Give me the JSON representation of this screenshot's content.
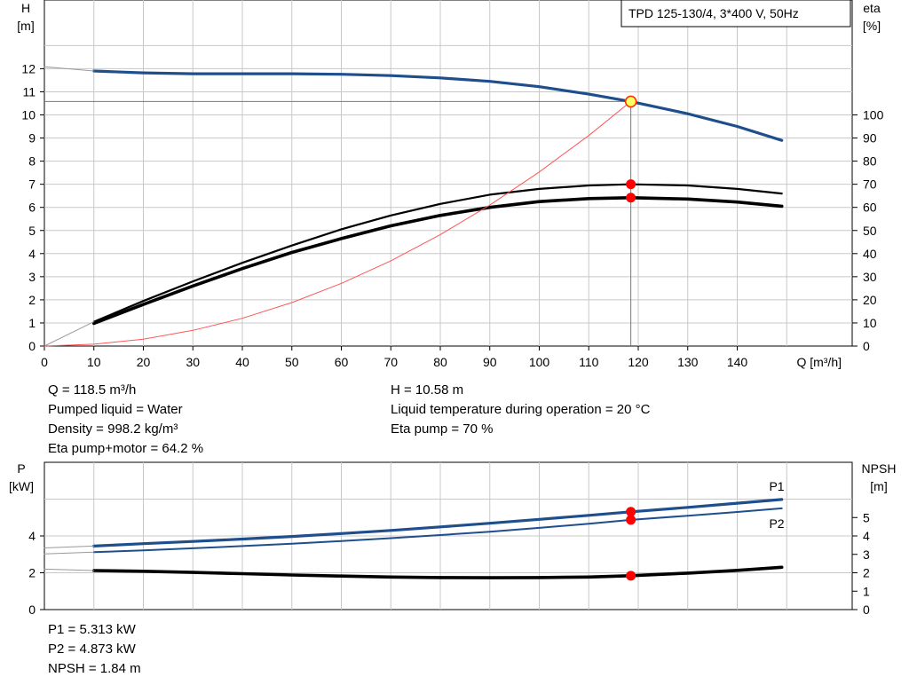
{
  "chart_data": [
    {
      "type": "line",
      "title": "TPD 125-130/4, 3*400 V, 50Hz",
      "xlabel": "Q [m³/h]",
      "ylabel_left": "H",
      "ylabel_left_unit": "[m]",
      "ylabel_right": "eta",
      "ylabel_right_unit": "[%]",
      "xlim": [
        0,
        160
      ],
      "ylim_left": [
        0,
        14
      ],
      "ylim_right": [
        0,
        140
      ],
      "x_ticks": [
        0,
        10,
        20,
        30,
        40,
        50,
        60,
        70,
        80,
        90,
        100,
        110,
        120,
        130,
        140
      ],
      "y_ticks_left": [
        0,
        1,
        2,
        3,
        4,
        5,
        6,
        7,
        8,
        9,
        10,
        11,
        12
      ],
      "y_ticks_right": [
        0,
        10,
        20,
        30,
        40,
        50,
        60,
        70,
        80,
        90,
        100
      ],
      "grid": true,
      "series": [
        {
          "key": "H",
          "axis": "left",
          "color": "#1f4e8c",
          "width": 3.2,
          "x": [
            10,
            20,
            30,
            40,
            50,
            60,
            70,
            80,
            90,
            100,
            110,
            118.5,
            130,
            140,
            149
          ],
          "y": [
            11.9,
            11.82,
            11.78,
            11.78,
            11.78,
            11.76,
            11.7,
            11.6,
            11.45,
            11.22,
            10.9,
            10.58,
            10.05,
            9.5,
            8.9
          ]
        },
        {
          "key": "H_ext",
          "axis": "left",
          "color": "#999999",
          "width": 1,
          "x": [
            0,
            10
          ],
          "y": [
            12.08,
            11.9
          ]
        },
        {
          "key": "eta_pump",
          "axis": "right",
          "color": "#000000",
          "width": 2.2,
          "x": [
            10,
            20,
            30,
            40,
            50,
            60,
            70,
            80,
            90,
            100,
            110,
            118.5,
            130,
            140,
            149
          ],
          "y": [
            10.5,
            19.5,
            28,
            36,
            43.5,
            50.5,
            56.5,
            61.5,
            65.5,
            68,
            69.5,
            70,
            69.5,
            68,
            66
          ]
        },
        {
          "key": "eta_total",
          "axis": "right",
          "color": "#000000",
          "width": 3.6,
          "x": [
            10,
            20,
            30,
            40,
            50,
            60,
            70,
            80,
            90,
            100,
            110,
            118.5,
            130,
            140,
            149
          ],
          "y": [
            9.8,
            18,
            26,
            33.5,
            40.5,
            46.5,
            52,
            56.5,
            60,
            62.5,
            63.8,
            64.2,
            63.6,
            62.3,
            60.5
          ]
        },
        {
          "key": "eta_ext",
          "axis": "right",
          "color": "#999999",
          "width": 1,
          "x": [
            0,
            10
          ],
          "y": [
            0,
            10.5
          ]
        },
        {
          "key": "system_curve",
          "axis": "left",
          "color": "#ff5555",
          "width": 1,
          "x": [
            0,
            10,
            20,
            30,
            40,
            50,
            60,
            70,
            80,
            90,
            100,
            110,
            118.5
          ],
          "y": [
            0,
            0.08,
            0.3,
            0.68,
            1.2,
            1.88,
            2.71,
            3.69,
            4.82,
            6.1,
            7.53,
            9.11,
            10.58
          ]
        }
      ],
      "operating_point": {
        "Q": 118.5,
        "H": 10.58,
        "eta_pump": 70,
        "eta_total": 64.2
      }
    },
    {
      "type": "line",
      "ylabel_left": "P",
      "ylabel_left_unit": "[kW]",
      "ylabel_right": "NPSH",
      "ylabel_right_unit": "[m]",
      "xlim": [
        0,
        160
      ],
      "ylim_left": [
        0,
        7
      ],
      "ylim_right": [
        0,
        7
      ],
      "x_ticks": [
        0,
        10,
        20,
        30,
        40,
        50,
        60,
        70,
        80,
        90,
        100,
        110,
        120,
        130,
        140
      ],
      "y_ticks_left": [
        0,
        2,
        4
      ],
      "y_ticks_right": [
        0,
        1,
        2,
        3,
        4,
        5
      ],
      "grid": true,
      "series": [
        {
          "key": "P1",
          "name": "P1",
          "axis": "left",
          "color": "#1f4e8c",
          "width": 3.2,
          "x": [
            10,
            20,
            30,
            40,
            50,
            60,
            70,
            80,
            90,
            100,
            110,
            118.5,
            130,
            140,
            149
          ],
          "y": [
            3.45,
            3.58,
            3.7,
            3.83,
            3.97,
            4.13,
            4.3,
            4.49,
            4.69,
            4.9,
            5.12,
            5.313,
            5.55,
            5.78,
            5.98
          ]
        },
        {
          "key": "P2",
          "name": "P2",
          "axis": "left",
          "color": "#1f4e8c",
          "width": 2,
          "x": [
            10,
            20,
            30,
            40,
            50,
            60,
            70,
            80,
            90,
            100,
            110,
            118.5,
            130,
            140,
            149
          ],
          "y": [
            3.12,
            3.22,
            3.33,
            3.45,
            3.58,
            3.72,
            3.88,
            4.05,
            4.23,
            4.44,
            4.66,
            4.873,
            5.1,
            5.3,
            5.5
          ]
        },
        {
          "key": "NPSH",
          "axis": "right",
          "color": "#000000",
          "width": 3.6,
          "x": [
            10,
            20,
            30,
            40,
            50,
            60,
            70,
            80,
            90,
            100,
            110,
            118.5,
            130,
            140,
            149
          ],
          "y": [
            2.12,
            2.08,
            2.02,
            1.95,
            1.88,
            1.82,
            1.77,
            1.74,
            1.73,
            1.74,
            1.77,
            1.84,
            1.98,
            2.13,
            2.3
          ]
        },
        {
          "key": "P1_ext",
          "axis": "left",
          "color": "#999999",
          "width": 1,
          "x": [
            0,
            10
          ],
          "y": [
            3.35,
            3.45
          ]
        },
        {
          "key": "P2_ext",
          "axis": "left",
          "color": "#999999",
          "width": 1,
          "x": [
            0,
            10
          ],
          "y": [
            3.02,
            3.12
          ]
        },
        {
          "key": "NPSH_ext",
          "axis": "right",
          "color": "#999999",
          "width": 1,
          "x": [
            0,
            10
          ],
          "y": [
            2.2,
            2.12
          ]
        }
      ],
      "operating_point": {
        "Q": 118.5,
        "P1": 5.313,
        "P2": 4.873,
        "NPSH": 1.84
      }
    }
  ],
  "info_top_left": [
    "Q = 118.5 m³/h",
    "Pumped liquid = Water",
    "Density = 998.2 kg/m³",
    "Eta pump+motor = 64.2 %"
  ],
  "info_top_right": [
    "H = 10.58 m",
    "Liquid temperature during operation = 20 °C",
    "Eta pump = 70 %"
  ],
  "info_bottom": [
    "P1 = 5.313 kW",
    "P2 = 4.873 kW",
    "NPSH = 1.84 m"
  ],
  "colors": {
    "curve_blue": "#1f4e8c",
    "marker_red": "#ff0000",
    "marker_yellow": "#ffff66",
    "system_curve": "#ff5555",
    "grid": "#c8c8c8"
  }
}
